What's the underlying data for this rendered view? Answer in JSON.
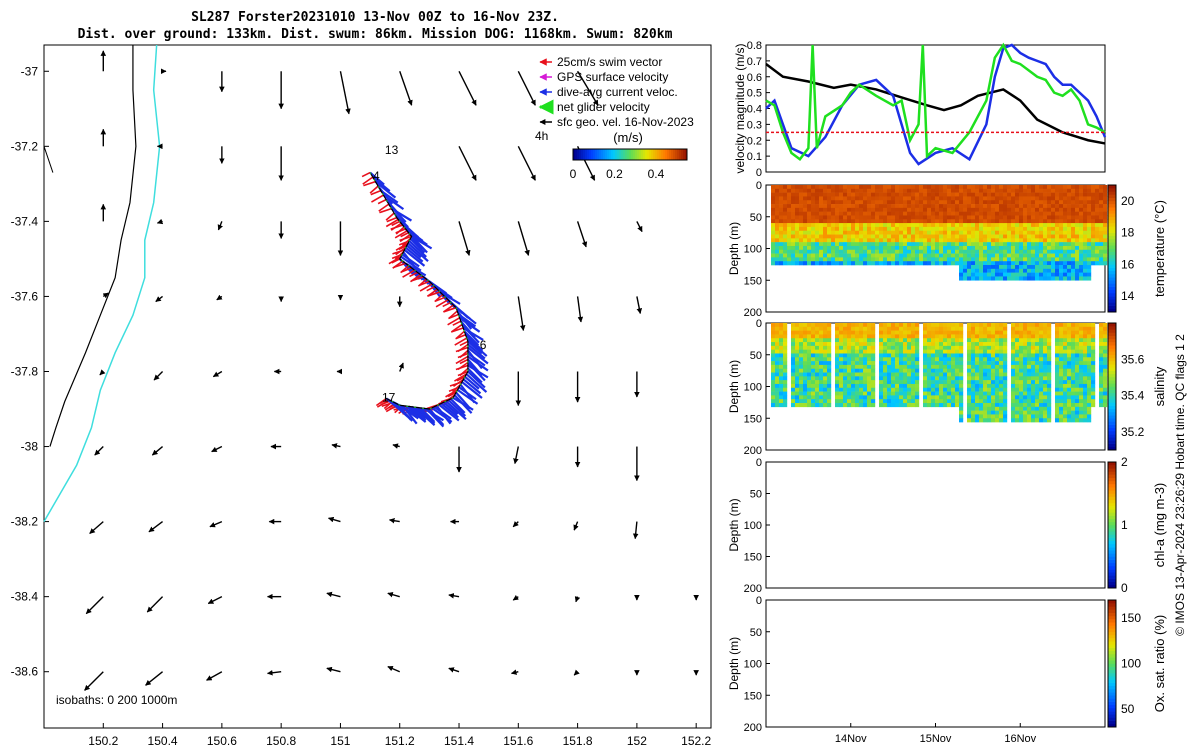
{
  "header": {
    "title": "SL287 Forster20231010 13-Nov 00Z to 16-Nov 23Z.",
    "subtitle": "Dist. over ground: 133km. Dist. swum: 86km. Mission DOG: 1168km. Swum: 820km"
  },
  "colors": {
    "swim": "#e8101c",
    "gps": "#d61ad6",
    "current": "#1c2fe6",
    "net": "#1fe01f",
    "geo": "#000000",
    "coast": "#000000",
    "isobath": "#3fdede"
  },
  "chart_data": [
    {
      "type": "scatter",
      "name": "map",
      "xlim": [
        150.0,
        152.25
      ],
      "ylim": [
        -38.75,
        -36.93
      ],
      "xticks": [
        150.2,
        150.4,
        150.6,
        150.8,
        151,
        151.2,
        151.4,
        151.6,
        151.8,
        152,
        152.2
      ],
      "yticks": [
        -37,
        -37.2,
        -37.4,
        -37.6,
        -37.8,
        -38,
        -38.2,
        -38.4,
        -38.6
      ],
      "legend": {
        "position": "top-right",
        "entries": [
          "25cm/s swim vector",
          "GPS surface velocity",
          "dive-avg current veloc.",
          "net glider velocity",
          "sfc geo. vel. 16-Nov-2023"
        ]
      },
      "colorbar": {
        "label": "(m/s)",
        "ticks": [
          "0",
          "0.2",
          "0.4"
        ],
        "range": [
          0,
          0.55
        ]
      },
      "annotations": {
        "window": "4h",
        "day_labels": [
          "13",
          "4",
          "6",
          "17"
        ],
        "isobaths": "isobaths: 0   200  1000m"
      },
      "track": [
        [
          151.1,
          -37.27
        ],
        [
          151.19,
          -37.39
        ],
        [
          151.24,
          -37.44
        ],
        [
          151.2,
          -37.5
        ],
        [
          151.3,
          -37.56
        ],
        [
          151.39,
          -37.63
        ],
        [
          151.43,
          -37.72
        ],
        [
          151.43,
          -37.8
        ],
        [
          151.38,
          -37.87
        ],
        [
          151.3,
          -37.9
        ],
        [
          151.2,
          -37.89
        ],
        [
          151.15,
          -37.87
        ]
      ],
      "coast_black": [
        [
          150.3,
          -36.93
        ],
        [
          150.3,
          -37.05
        ],
        [
          150.31,
          -37.2
        ],
        [
          150.29,
          -37.35
        ],
        [
          150.26,
          -37.45
        ],
        [
          150.24,
          -37.55
        ],
        [
          150.19,
          -37.65
        ],
        [
          150.14,
          -37.75
        ],
        [
          150.07,
          -37.88
        ],
        [
          150.04,
          -37.95
        ],
        [
          150.02,
          -38.0
        ]
      ],
      "isobath_cyan": [
        [
          150.38,
          -36.93
        ],
        [
          150.37,
          -37.05
        ],
        [
          150.39,
          -37.2
        ],
        [
          150.37,
          -37.35
        ],
        [
          150.34,
          -37.45
        ],
        [
          150.34,
          -37.55
        ],
        [
          150.3,
          -37.65
        ],
        [
          150.24,
          -37.75
        ],
        [
          150.19,
          -37.85
        ],
        [
          150.16,
          -37.95
        ],
        [
          150.11,
          -38.05
        ],
        [
          150.0,
          -38.2
        ]
      ],
      "geo_vectors": [
        {
          "lon": 150.2,
          "lat": -37.0,
          "u": 0.0,
          "v": 0.12
        },
        {
          "lon": 150.4,
          "lat": -37.0,
          "u": 0.02,
          "v": 0.0
        },
        {
          "lon": 150.6,
          "lat": -37.0,
          "u": 0.0,
          "v": -0.12
        },
        {
          "lon": 150.8,
          "lat": -37.0,
          "u": 0.0,
          "v": -0.22
        },
        {
          "lon": 151.0,
          "lat": -37.0,
          "u": 0.05,
          "v": -0.25
        },
        {
          "lon": 151.2,
          "lat": -37.0,
          "u": 0.07,
          "v": -0.2
        },
        {
          "lon": 151.4,
          "lat": -37.0,
          "u": 0.1,
          "v": -0.2
        },
        {
          "lon": 151.6,
          "lat": -37.0,
          "u": 0.1,
          "v": -0.2
        },
        {
          "lon": 151.8,
          "lat": -37.0,
          "u": 0.12,
          "v": -0.2
        },
        {
          "lon": 150.2,
          "lat": -37.2,
          "u": 0.0,
          "v": 0.1
        },
        {
          "lon": 150.4,
          "lat": -37.2,
          "u": -0.03,
          "v": 0.0
        },
        {
          "lon": 150.6,
          "lat": -37.2,
          "u": 0.0,
          "v": -0.1
        },
        {
          "lon": 150.8,
          "lat": -37.2,
          "u": 0.0,
          "v": -0.2
        },
        {
          "lon": 151.4,
          "lat": -37.2,
          "u": 0.1,
          "v": -0.2
        },
        {
          "lon": 151.6,
          "lat": -37.2,
          "u": 0.1,
          "v": -0.2
        },
        {
          "lon": 151.8,
          "lat": -37.2,
          "u": 0.1,
          "v": -0.2
        },
        {
          "lon": 150.2,
          "lat": -37.4,
          "u": 0.0,
          "v": 0.1
        },
        {
          "lon": 150.4,
          "lat": -37.4,
          "u": -0.03,
          "v": -0.01
        },
        {
          "lon": 150.6,
          "lat": -37.4,
          "u": -0.02,
          "v": -0.05
        },
        {
          "lon": 150.8,
          "lat": -37.4,
          "u": 0.0,
          "v": -0.1
        },
        {
          "lon": 151.0,
          "lat": -37.4,
          "u": 0.0,
          "v": -0.2
        },
        {
          "lon": 151.4,
          "lat": -37.4,
          "u": 0.06,
          "v": -0.2
        },
        {
          "lon": 151.6,
          "lat": -37.4,
          "u": 0.06,
          "v": -0.2
        },
        {
          "lon": 151.8,
          "lat": -37.4,
          "u": 0.05,
          "v": -0.15
        },
        {
          "lon": 152.0,
          "lat": -37.4,
          "u": 0.03,
          "v": -0.06
        },
        {
          "lon": 150.2,
          "lat": -37.6,
          "u": 0.03,
          "v": 0.02
        },
        {
          "lon": 150.4,
          "lat": -37.6,
          "u": -0.04,
          "v": -0.03
        },
        {
          "lon": 150.6,
          "lat": -37.6,
          "u": -0.03,
          "v": -0.02
        },
        {
          "lon": 150.8,
          "lat": -37.6,
          "u": 0.0,
          "v": -0.03
        },
        {
          "lon": 151.0,
          "lat": -37.6,
          "u": 0.0,
          "v": -0.02
        },
        {
          "lon": 151.2,
          "lat": -37.6,
          "u": 0.0,
          "v": -0.06
        },
        {
          "lon": 151.6,
          "lat": -37.6,
          "u": 0.03,
          "v": -0.2
        },
        {
          "lon": 151.8,
          "lat": -37.6,
          "u": 0.02,
          "v": -0.15
        },
        {
          "lon": 152.0,
          "lat": -37.6,
          "u": 0.02,
          "v": -0.1
        },
        {
          "lon": 150.2,
          "lat": -37.8,
          "u": -0.02,
          "v": -0.02
        },
        {
          "lon": 150.4,
          "lat": -37.8,
          "u": -0.05,
          "v": -0.05
        },
        {
          "lon": 150.6,
          "lat": -37.8,
          "u": -0.05,
          "v": -0.03
        },
        {
          "lon": 150.8,
          "lat": -37.8,
          "u": -0.04,
          "v": 0.0
        },
        {
          "lon": 151.0,
          "lat": -37.8,
          "u": -0.02,
          "v": 0.0
        },
        {
          "lon": 151.2,
          "lat": -37.8,
          "u": 0.02,
          "v": 0.05
        },
        {
          "lon": 151.6,
          "lat": -37.8,
          "u": 0.0,
          "v": -0.2
        },
        {
          "lon": 151.8,
          "lat": -37.8,
          "u": 0.0,
          "v": -0.18
        },
        {
          "lon": 152.0,
          "lat": -37.8,
          "u": 0.0,
          "v": -0.15
        },
        {
          "lon": 150.2,
          "lat": -38.0,
          "u": -0.05,
          "v": -0.05
        },
        {
          "lon": 150.4,
          "lat": -38.0,
          "u": -0.06,
          "v": -0.05
        },
        {
          "lon": 150.6,
          "lat": -38.0,
          "u": -0.06,
          "v": -0.03
        },
        {
          "lon": 150.8,
          "lat": -38.0,
          "u": -0.06,
          "v": 0.0
        },
        {
          "lon": 151.0,
          "lat": -38.0,
          "u": -0.05,
          "v": 0.01
        },
        {
          "lon": 151.2,
          "lat": -38.0,
          "u": -0.04,
          "v": 0.01
        },
        {
          "lon": 151.4,
          "lat": -38.0,
          "u": 0.0,
          "v": -0.15
        },
        {
          "lon": 151.6,
          "lat": -38.0,
          "u": -0.02,
          "v": -0.1
        },
        {
          "lon": 151.8,
          "lat": -38.0,
          "u": 0.0,
          "v": -0.12
        },
        {
          "lon": 152.0,
          "lat": -38.0,
          "u": 0.0,
          "v": -0.2
        },
        {
          "lon": 150.2,
          "lat": -38.2,
          "u": -0.08,
          "v": -0.07
        },
        {
          "lon": 150.4,
          "lat": -38.2,
          "u": -0.08,
          "v": -0.06
        },
        {
          "lon": 150.6,
          "lat": -38.2,
          "u": -0.07,
          "v": -0.03
        },
        {
          "lon": 150.8,
          "lat": -38.2,
          "u": -0.07,
          "v": 0.0
        },
        {
          "lon": 151.0,
          "lat": -38.2,
          "u": -0.07,
          "v": 0.02
        },
        {
          "lon": 151.2,
          "lat": -38.2,
          "u": -0.06,
          "v": 0.01
        },
        {
          "lon": 151.4,
          "lat": -38.2,
          "u": -0.05,
          "v": 0.0
        },
        {
          "lon": 151.6,
          "lat": -38.2,
          "u": -0.03,
          "v": -0.03
        },
        {
          "lon": 151.8,
          "lat": -38.2,
          "u": -0.02,
          "v": -0.05
        },
        {
          "lon": 152.0,
          "lat": -38.2,
          "u": -0.01,
          "v": -0.1
        },
        {
          "lon": 150.2,
          "lat": -38.4,
          "u": -0.1,
          "v": -0.1
        },
        {
          "lon": 150.4,
          "lat": -38.4,
          "u": -0.09,
          "v": -0.09
        },
        {
          "lon": 150.6,
          "lat": -38.4,
          "u": -0.08,
          "v": -0.04
        },
        {
          "lon": 150.8,
          "lat": -38.4,
          "u": -0.08,
          "v": 0.0
        },
        {
          "lon": 151.0,
          "lat": -38.4,
          "u": -0.08,
          "v": 0.02
        },
        {
          "lon": 151.2,
          "lat": -38.4,
          "u": -0.07,
          "v": 0.02
        },
        {
          "lon": 151.4,
          "lat": -38.4,
          "u": -0.06,
          "v": 0.01
        },
        {
          "lon": 151.6,
          "lat": -38.4,
          "u": -0.03,
          "v": -0.02
        },
        {
          "lon": 151.8,
          "lat": -38.4,
          "u": -0.01,
          "v": -0.03
        },
        {
          "lon": 152.0,
          "lat": -38.4,
          "u": 0.0,
          "v": -0.02
        },
        {
          "lon": 152.2,
          "lat": -38.4,
          "u": 0.0,
          "v": -0.02
        },
        {
          "lon": 150.2,
          "lat": -38.6,
          "u": -0.11,
          "v": -0.11
        },
        {
          "lon": 150.4,
          "lat": -38.6,
          "u": -0.1,
          "v": -0.08
        },
        {
          "lon": 150.6,
          "lat": -38.6,
          "u": -0.09,
          "v": -0.05
        },
        {
          "lon": 150.8,
          "lat": -38.6,
          "u": -0.08,
          "v": -0.01
        },
        {
          "lon": 151.0,
          "lat": -38.6,
          "u": -0.08,
          "v": 0.02
        },
        {
          "lon": 151.2,
          "lat": -38.6,
          "u": -0.07,
          "v": 0.03
        },
        {
          "lon": 151.4,
          "lat": -38.6,
          "u": -0.06,
          "v": 0.02
        },
        {
          "lon": 151.6,
          "lat": -38.6,
          "u": -0.04,
          "v": -0.01
        },
        {
          "lon": 151.8,
          "lat": -38.6,
          "u": -0.02,
          "v": -0.02
        },
        {
          "lon": 152.0,
          "lat": -38.6,
          "u": 0.0,
          "v": -0.02
        },
        {
          "lon": 152.2,
          "lat": -38.6,
          "u": 0.0,
          "v": -0.02
        }
      ]
    },
    {
      "type": "line",
      "name": "velocity",
      "ylabel": "velocity magnitude (m/s)",
      "ylim": [
        0,
        0.8
      ],
      "yticks": [
        0,
        0.1,
        0.2,
        0.3,
        0.4,
        0.5,
        0.6,
        0.7,
        0.8
      ],
      "xlim": [
        0,
        4
      ],
      "series": [
        {
          "color": "#000000",
          "x": [
            0,
            0.2,
            0.5,
            0.8,
            1.0,
            1.3,
            1.6,
            1.9,
            2.1,
            2.3,
            2.5,
            2.8,
            3.0,
            3.2,
            3.5,
            3.8,
            4.0
          ],
          "y": [
            0.68,
            0.6,
            0.57,
            0.53,
            0.55,
            0.52,
            0.47,
            0.42,
            0.39,
            0.42,
            0.48,
            0.52,
            0.45,
            0.33,
            0.25,
            0.2,
            0.18
          ]
        },
        {
          "color": "#1c2fe6",
          "x": [
            0,
            0.1,
            0.2,
            0.3,
            0.5,
            0.7,
            0.9,
            1.1,
            1.3,
            1.5,
            1.6,
            1.7,
            1.8,
            2.0,
            2.2,
            2.4,
            2.6,
            2.7,
            2.8,
            2.9,
            3.0,
            3.1,
            3.2,
            3.3,
            3.4,
            3.5,
            3.6,
            3.7,
            3.8,
            3.9,
            4.0
          ],
          "y": [
            0.4,
            0.45,
            0.3,
            0.15,
            0.1,
            0.22,
            0.42,
            0.55,
            0.58,
            0.48,
            0.3,
            0.12,
            0.05,
            0.12,
            0.15,
            0.08,
            0.3,
            0.6,
            0.78,
            0.8,
            0.75,
            0.72,
            0.7,
            0.68,
            0.6,
            0.55,
            0.55,
            0.5,
            0.45,
            0.35,
            0.22
          ]
        },
        {
          "color": "#1fe01f",
          "x": [
            0,
            0.1,
            0.2,
            0.3,
            0.4,
            0.5,
            0.55,
            0.6,
            0.7,
            0.9,
            1.0,
            1.1,
            1.3,
            1.5,
            1.6,
            1.7,
            1.8,
            1.85,
            1.9,
            2.0,
            2.2,
            2.4,
            2.6,
            2.7,
            2.8,
            2.9,
            3.0,
            3.1,
            3.2,
            3.3,
            3.4,
            3.5,
            3.6,
            3.7,
            3.8,
            3.9,
            4.0
          ],
          "y": [
            0.45,
            0.42,
            0.25,
            0.12,
            0.08,
            0.15,
            0.8,
            0.15,
            0.35,
            0.42,
            0.5,
            0.55,
            0.48,
            0.42,
            0.45,
            0.2,
            0.3,
            0.8,
            0.1,
            0.15,
            0.12,
            0.25,
            0.45,
            0.72,
            0.8,
            0.7,
            0.68,
            0.64,
            0.6,
            0.58,
            0.5,
            0.48,
            0.52,
            0.45,
            0.3,
            0.28,
            0.25
          ]
        },
        {
          "color": "#e8101c",
          "dashed": true,
          "x": [
            0,
            4
          ],
          "y": [
            0.25,
            0.25
          ]
        }
      ]
    },
    {
      "type": "heatmap",
      "name": "temperature",
      "ylabel": "Depth (m)",
      "yticks": [
        0,
        50,
        100,
        150,
        200
      ],
      "ylim": [
        0,
        200
      ],
      "colorbar_label": "temperature (°C)",
      "colorbar_ticks": [
        14,
        16,
        18,
        20
      ],
      "crange": [
        13,
        21
      ]
    },
    {
      "type": "heatmap",
      "name": "salinity",
      "ylabel": "Depth (m)",
      "yticks": [
        0,
        50,
        100,
        150,
        200
      ],
      "ylim": [
        0,
        200
      ],
      "colorbar_label": "salinity",
      "colorbar_ticks": [
        35.2,
        35.4,
        35.6
      ],
      "crange": [
        35.1,
        35.8
      ]
    },
    {
      "type": "heatmap",
      "name": "chl-a",
      "ylabel": "Depth (m)",
      "yticks": [
        0,
        50,
        100,
        150,
        200
      ],
      "ylim": [
        0,
        200
      ],
      "colorbar_label": "chl-a (mg m-3)",
      "colorbar_ticks": [
        0,
        1,
        2
      ],
      "crange": [
        0,
        2
      ]
    },
    {
      "type": "heatmap",
      "name": "oxygen",
      "ylabel": "Depth (m)",
      "yticks": [
        0,
        50,
        100,
        150,
        200
      ],
      "ylim": [
        0,
        200
      ],
      "colorbar_label": "Ox. sat. ratio (%)",
      "colorbar_ticks": [
        50,
        100,
        150
      ],
      "crange": [
        30,
        170
      ],
      "xticks": [
        "14Nov",
        "15Nov",
        "16Nov"
      ]
    }
  ],
  "side_notes": {
    "copyright": "© IMOS 13-Apr-2024 23:26:29 Hobart time. QC flags 1  2"
  }
}
